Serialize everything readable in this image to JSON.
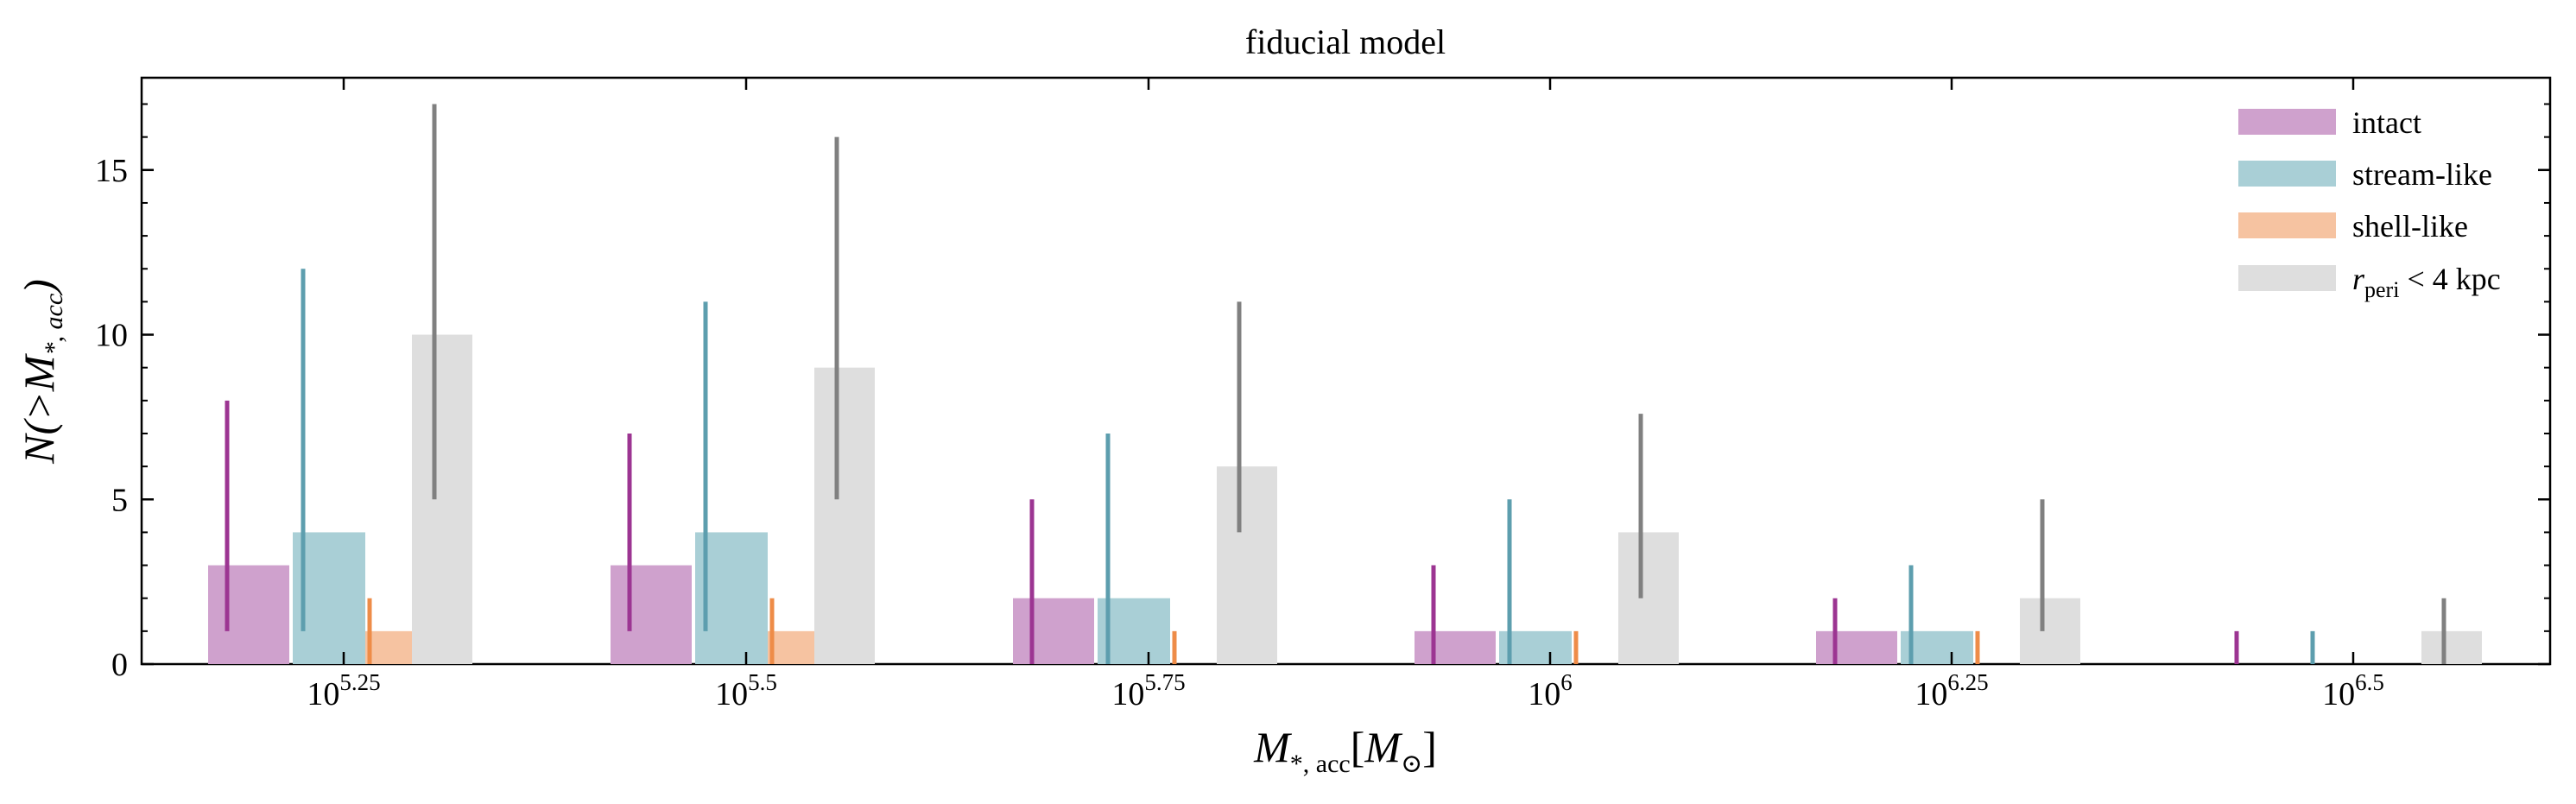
{
  "chart_data": {
    "type": "bar",
    "title": "fiducial model",
    "xlabel": "M*,acc[M⊙]",
    "ylabel": "N(>M*,acc)",
    "categories": [
      "10^5.25",
      "10^5.5",
      "10^5.75",
      "10^6",
      "10^6.25",
      "10^6.5"
    ],
    "ylim": [
      0,
      17.8
    ],
    "yticks": [
      "0",
      "5",
      "10",
      "15"
    ],
    "series": [
      {
        "name": "intact",
        "bar_color": "#cfa1cd",
        "err_color": "#9c3592",
        "values": [
          3,
          3,
          2,
          1,
          1,
          0
        ],
        "err_low": [
          1,
          1,
          0,
          0,
          0,
          0
        ],
        "err_high": [
          8,
          7,
          5,
          3,
          2,
          1
        ]
      },
      {
        "name": "stream-like",
        "bar_color": "#a9cfd6",
        "err_color": "#5d9eae",
        "values": [
          4,
          4,
          2,
          1,
          1,
          0
        ],
        "err_low": [
          1,
          1,
          0,
          0,
          0,
          0
        ],
        "err_high": [
          12,
          11,
          7,
          5,
          3,
          1
        ]
      },
      {
        "name": "shell-like",
        "bar_color": "#f6c3a1",
        "err_color": "#ee8c48",
        "values": [
          1,
          1,
          0,
          0,
          0,
          0
        ],
        "err_low": [
          0,
          0,
          0,
          0,
          0,
          0
        ],
        "err_high": [
          2,
          2,
          1,
          1,
          1,
          0
        ]
      },
      {
        "name": "r_peri < 4 kpc",
        "bar_color": "#dedede",
        "err_color": "#808080",
        "values": [
          10,
          9,
          6,
          4,
          2,
          1
        ],
        "err_low": [
          5,
          5,
          4,
          2,
          1,
          0
        ],
        "err_high": [
          17,
          16,
          11,
          7.6,
          5,
          2
        ]
      }
    ],
    "legend": {
      "position": "top-right",
      "entries": [
        "intact",
        "stream-like",
        "shell-like",
        "r_peri < 4 kpc"
      ]
    },
    "grid": false
  }
}
